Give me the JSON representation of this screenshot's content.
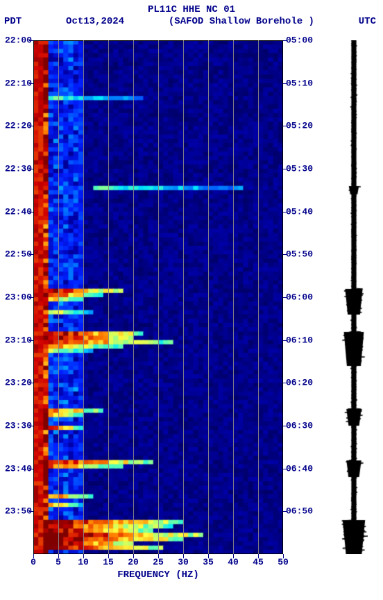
{
  "header": {
    "station_id": "PL11C HHE NC 01",
    "tz_left": "PDT",
    "date": "Oct13,2024",
    "station_desc": "(SAFOD Shallow Borehole )",
    "tz_right": "UTC"
  },
  "axes": {
    "x_label": "FREQUENCY (HZ)",
    "x_ticks": [
      0,
      5,
      10,
      15,
      20,
      25,
      30,
      35,
      40,
      45,
      50
    ],
    "x_min": 0,
    "x_max": 50,
    "left_time_ticks": [
      "22:00",
      "22:10",
      "22:20",
      "22:30",
      "22:40",
      "22:50",
      "23:00",
      "23:10",
      "23:20",
      "23:30",
      "23:40",
      "23:50"
    ],
    "right_time_ticks": [
      "05:00",
      "05:10",
      "05:20",
      "05:30",
      "05:40",
      "05:50",
      "06:00",
      "06:10",
      "06:20",
      "06:30",
      "06:40",
      "06:50"
    ],
    "time_rows": 120
  },
  "style": {
    "text_color": "#00008b",
    "grid_color": "#888888",
    "font_family": "Courier New",
    "title_fontsize": 14,
    "tick_fontsize": 13,
    "bg_color": "#ffffff",
    "seismo_color": "#000000"
  },
  "colormap": {
    "stops": [
      {
        "v": 0.0,
        "c": "#00004d"
      },
      {
        "v": 0.15,
        "c": "#0000a8"
      },
      {
        "v": 0.3,
        "c": "#0020ff"
      },
      {
        "v": 0.45,
        "c": "#0090ff"
      },
      {
        "v": 0.55,
        "c": "#00e8ff"
      },
      {
        "v": 0.65,
        "c": "#60ffb0"
      },
      {
        "v": 0.75,
        "c": "#ffff40"
      },
      {
        "v": 0.85,
        "c": "#ff8000"
      },
      {
        "v": 0.95,
        "c": "#d00000"
      },
      {
        "v": 1.0,
        "c": "#800000"
      }
    ]
  },
  "spectrogram": {
    "nx": 50,
    "ny": 120,
    "low_freq_band": {
      "fmin": 0,
      "fmax": 3,
      "intensity": 0.98
    },
    "base_intensity_dark": 0.05,
    "base_intensity_blue": 0.22,
    "speckle_band": {
      "fmin": 2,
      "fmax": 8,
      "amount": 0.25
    },
    "events": [
      {
        "time_row": 34,
        "fmin": 12,
        "fmax": 42,
        "intensity": 0.55
      },
      {
        "time_row": 58,
        "fmin": 2,
        "fmax": 18,
        "intensity": 0.92
      },
      {
        "time_row": 59,
        "fmin": 2,
        "fmax": 14,
        "intensity": 0.88
      },
      {
        "time_row": 60,
        "fmin": 2,
        "fmax": 10,
        "intensity": 0.78
      },
      {
        "time_row": 63,
        "fmin": 2,
        "fmax": 12,
        "intensity": 0.7
      },
      {
        "time_row": 68,
        "fmin": 2,
        "fmax": 22,
        "intensity": 0.95
      },
      {
        "time_row": 69,
        "fmin": 2,
        "fmax": 20,
        "intensity": 0.96
      },
      {
        "time_row": 70,
        "fmin": 2,
        "fmax": 28,
        "intensity": 0.88
      },
      {
        "time_row": 71,
        "fmin": 2,
        "fmax": 18,
        "intensity": 0.8
      },
      {
        "time_row": 72,
        "fmin": 2,
        "fmax": 12,
        "intensity": 0.7
      },
      {
        "time_row": 86,
        "fmin": 2,
        "fmax": 14,
        "intensity": 0.85
      },
      {
        "time_row": 87,
        "fmin": 2,
        "fmax": 10,
        "intensity": 0.78
      },
      {
        "time_row": 90,
        "fmin": 2,
        "fmax": 10,
        "intensity": 0.88
      },
      {
        "time_row": 98,
        "fmin": 2,
        "fmax": 24,
        "intensity": 0.92
      },
      {
        "time_row": 99,
        "fmin": 2,
        "fmax": 18,
        "intensity": 0.8
      },
      {
        "time_row": 106,
        "fmin": 2,
        "fmax": 12,
        "intensity": 0.82
      },
      {
        "time_row": 108,
        "fmin": 2,
        "fmax": 10,
        "intensity": 0.75
      },
      {
        "time_row": 112,
        "fmin": 2,
        "fmax": 30,
        "intensity": 0.95
      },
      {
        "time_row": 113,
        "fmin": 2,
        "fmax": 28,
        "intensity": 0.9
      },
      {
        "time_row": 114,
        "fmin": 2,
        "fmax": 24,
        "intensity": 0.94
      },
      {
        "time_row": 115,
        "fmin": 2,
        "fmax": 34,
        "intensity": 0.97
      },
      {
        "time_row": 116,
        "fmin": 2,
        "fmax": 30,
        "intensity": 0.98
      },
      {
        "time_row": 117,
        "fmin": 2,
        "fmax": 20,
        "intensity": 0.96
      },
      {
        "time_row": 118,
        "fmin": 2,
        "fmax": 26,
        "intensity": 0.97
      },
      {
        "time_row": 13,
        "fmin": 2,
        "fmax": 22,
        "intensity": 0.55
      }
    ]
  },
  "seismogram": {
    "n": 740,
    "base_amp": 4,
    "bursts": [
      {
        "row": 58,
        "rows": 6,
        "amp": 14
      },
      {
        "row": 68,
        "rows": 8,
        "amp": 16
      },
      {
        "row": 86,
        "rows": 4,
        "amp": 12
      },
      {
        "row": 98,
        "rows": 4,
        "amp": 12
      },
      {
        "row": 112,
        "rows": 8,
        "amp": 18
      },
      {
        "row": 34,
        "rows": 2,
        "amp": 8
      }
    ]
  }
}
